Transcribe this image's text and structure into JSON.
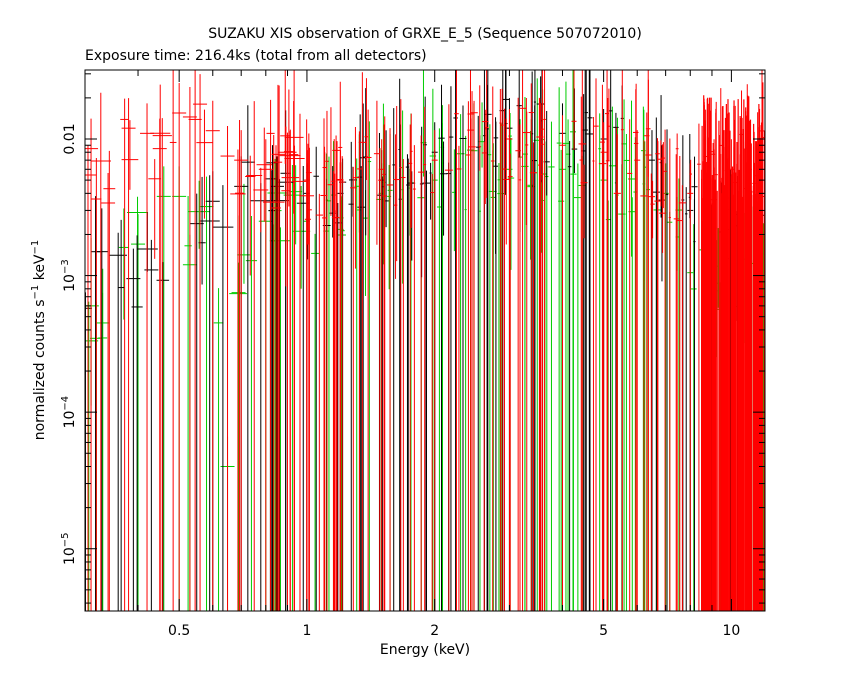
{
  "chart_data": {
    "type": "scatter",
    "title": "SUZAKU XIS observation of GRXE_E_5 (Sequence 507072010)",
    "subtitle": "Exposure time: 216.4ks (total from all detectors)",
    "xlabel": "Energy (keV)",
    "ylabel": {
      "prefix": "normalized counts s",
      "exp1": "−1",
      "mid": " keV",
      "exp2": "−1"
    },
    "xscale": "log",
    "yscale": "log",
    "xlim": [
      0.3,
      12
    ],
    "ylim": [
      3.5e-06,
      0.032
    ],
    "x_ticks": [
      {
        "value": 0.5,
        "label": "0.5"
      },
      {
        "value": 1,
        "label": "1"
      },
      {
        "value": 2,
        "label": "2"
      },
      {
        "value": 5,
        "label": "5"
      },
      {
        "value": 10,
        "label": "10"
      }
    ],
    "y_ticks": [
      {
        "value": 1e-05,
        "base": "10",
        "exp": "−5"
      },
      {
        "value": 0.0001,
        "base": "10",
        "exp": "−4"
      },
      {
        "value": 0.001,
        "base": "10",
        "exp": "−3"
      },
      {
        "value": 0.01,
        "base": "0.01",
        "exp": ""
      }
    ],
    "series": [
      {
        "color": "#000000",
        "density": 0.25,
        "baseline": 0.006,
        "scatter": 0.5,
        "points": [
          [
            0.39,
            0.00095
          ],
          [
            0.43,
            0.0011
          ],
          [
            0.55,
            0.0024
          ],
          [
            0.6,
            0.0035
          ],
          [
            0.7,
            0.0045
          ],
          [
            0.85,
            0.0045
          ],
          [
            1.0,
            0.004
          ],
          [
            1.2,
            0.004
          ],
          [
            1.5,
            0.005
          ],
          [
            2.0,
            0.008
          ],
          [
            3.0,
            0.012
          ],
          [
            4.0,
            0.011
          ],
          [
            5.0,
            0.01
          ],
          [
            6.5,
            0.007
          ],
          [
            8.0,
            0.003
          ],
          [
            9.0,
            0.002
          ]
        ]
      },
      {
        "color": "#00cc00",
        "density": 0.3,
        "baseline": 0.004,
        "scatter": 0.6,
        "points": [
          [
            0.33,
            0.00045
          ],
          [
            0.4,
            0.0017
          ],
          [
            0.46,
            0.0038
          ],
          [
            0.5,
            0.0038
          ],
          [
            0.53,
            0.0012
          ],
          [
            0.58,
            0.0032
          ],
          [
            0.65,
            4e-05
          ],
          [
            0.69,
            0.00075
          ],
          [
            0.8,
            0.0025
          ],
          [
            1.0,
            0.0025
          ],
          [
            1.5,
            0.004
          ],
          [
            2.0,
            0.005
          ],
          [
            3.0,
            0.006
          ],
          [
            4.0,
            0.006
          ],
          [
            5.0,
            0.005
          ],
          [
            7.0,
            0.004
          ],
          [
            8.0,
            0.00105
          ],
          [
            9.0,
            0.001
          ]
        ]
      },
      {
        "color": "#ff0000",
        "density": 0.45,
        "baseline": 0.005,
        "scatter": 0.6,
        "points": [
          [
            0.31,
            0.0085
          ],
          [
            0.34,
            0.0034
          ],
          [
            0.38,
            0.012
          ],
          [
            0.42,
            0.011
          ],
          [
            0.45,
            0.0085
          ],
          [
            0.5,
            0.0155
          ],
          [
            0.53,
            0.0145
          ],
          [
            0.56,
            0.018
          ],
          [
            0.6,
            0.0115
          ],
          [
            0.65,
            0.0075
          ],
          [
            0.7,
            0.007
          ],
          [
            0.8,
            0.006
          ],
          [
            1.0,
            0.005
          ],
          [
            1.2,
            0.005
          ],
          [
            1.5,
            0.006
          ],
          [
            2.0,
            0.007
          ],
          [
            3.0,
            0.01
          ],
          [
            4.0,
            0.009
          ],
          [
            5.0,
            0.008
          ],
          [
            6.0,
            0.007
          ],
          [
            8.0,
            0.004
          ],
          [
            10.0,
            0.006
          ],
          [
            11.0,
            0.006
          ]
        ]
      }
    ]
  }
}
